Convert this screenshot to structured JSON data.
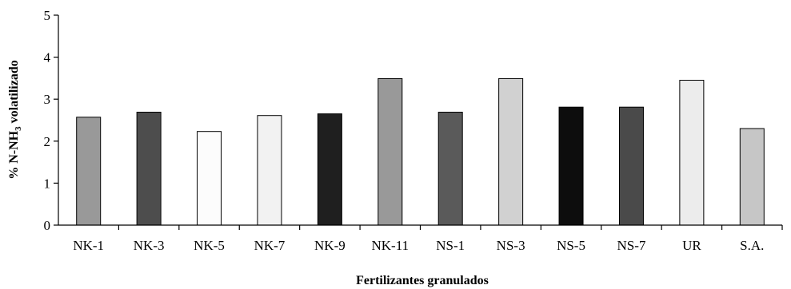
{
  "chart_data": {
    "type": "bar",
    "title": "",
    "xlabel": "Fertilizantes granulados",
    "ylabel_parts": {
      "prefix": "% N-NH",
      "subscript": "3",
      "suffix": " volatilizado"
    },
    "ylim": [
      0,
      5
    ],
    "yticks": [
      "0",
      "1",
      "2",
      "3",
      "4",
      "5"
    ],
    "grid": false,
    "legend": "none",
    "categories": [
      "NK-1",
      "NK-3",
      "NK-5",
      "NK-7",
      "NK-9",
      "NK-11",
      "NS-1",
      "NS-3",
      "NS-5",
      "NS-7",
      "UR",
      "S.A."
    ],
    "values": [
      2.57,
      2.69,
      2.23,
      2.61,
      2.65,
      3.49,
      2.69,
      3.49,
      2.81,
      2.81,
      3.45,
      2.3
    ],
    "colors": [
      "#999999",
      "#4d4d4d",
      "#fcfcfc",
      "#f2f2f2",
      "#1f1f1f",
      "#999999",
      "#5a5a5a",
      "#d1d1d1",
      "#0d0d0d",
      "#4a4a4a",
      "#ececec",
      "#c6c6c6"
    ]
  }
}
